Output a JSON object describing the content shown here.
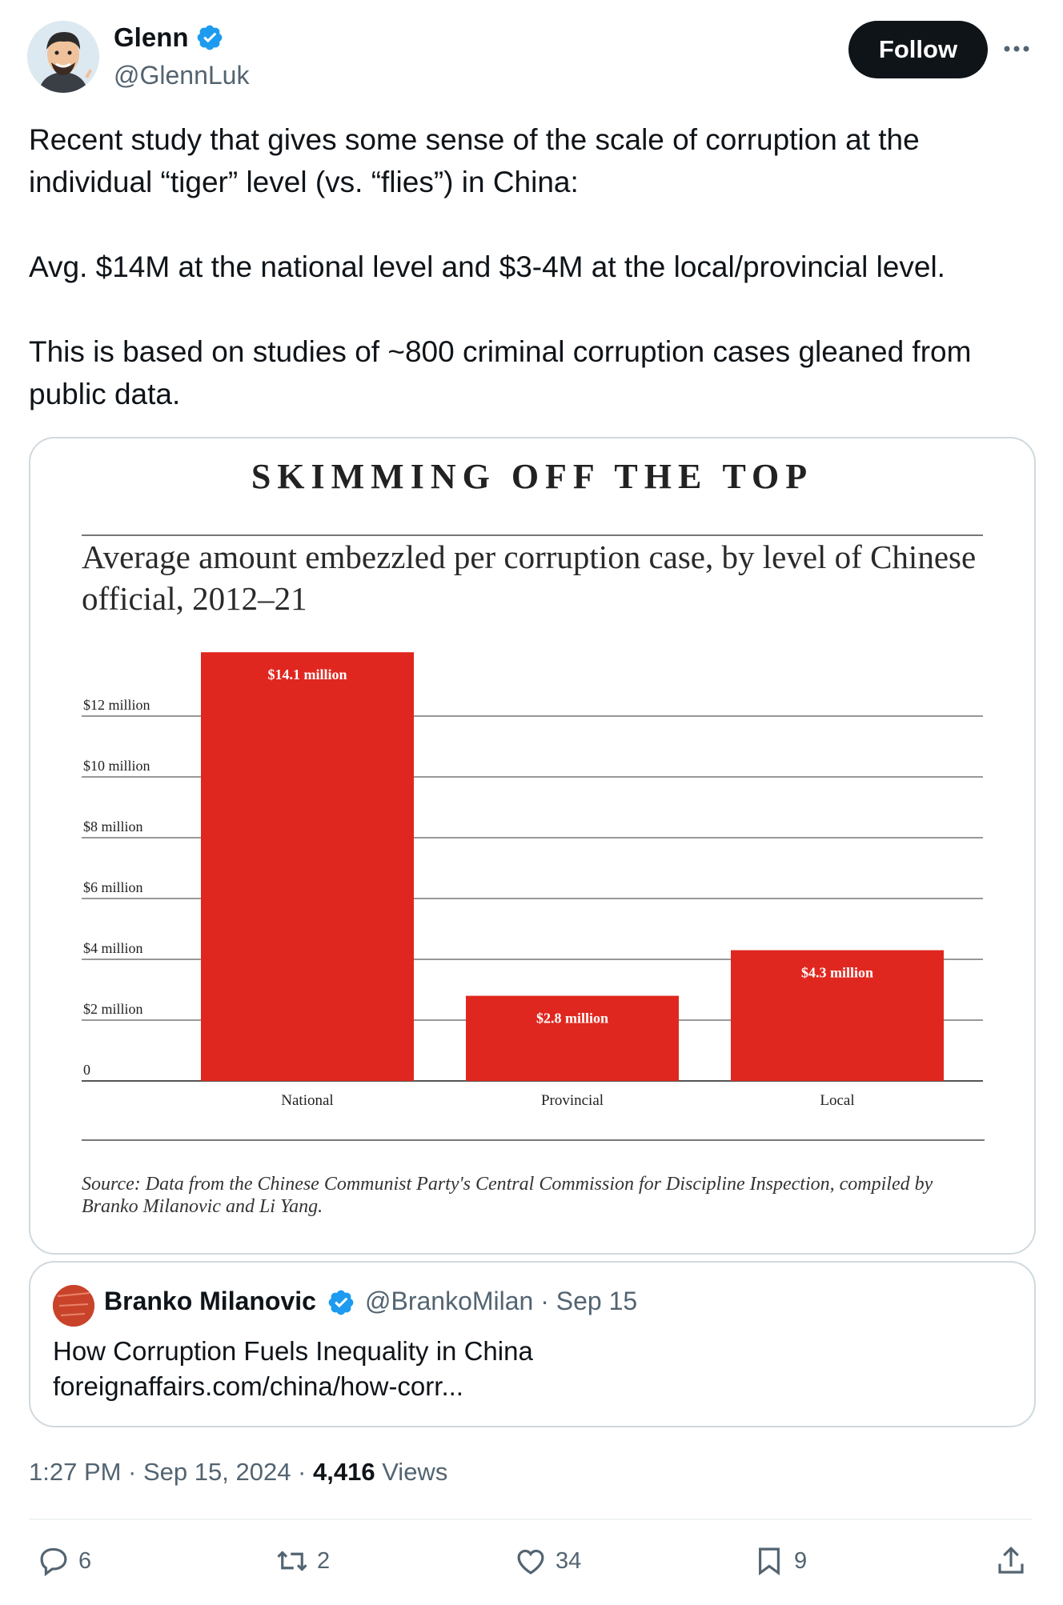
{
  "user": {
    "name": "Glenn",
    "handle": "@GlennLuk",
    "follow_label": "Follow"
  },
  "tweet": {
    "paragraphs": [
      "Recent study that gives some sense of the scale of corruption at the individual “tiger” level (vs. “flies”) in China:",
      "Avg. $14M at the national level and $3-4M at the local/provincial level.",
      "This is based on studies of ~800 criminal corruption cases gleaned from public data."
    ]
  },
  "chart_data": {
    "type": "bar",
    "title": "SKIMMING OFF THE TOP",
    "subtitle": "Average amount embezzled per corruption case, by level of Chinese official, 2012–21",
    "categories": [
      "National",
      "Provincial",
      "Local"
    ],
    "values": [
      14.1,
      2.8,
      4.3
    ],
    "value_labels": [
      "$14.1 million",
      "$2.8 million",
      "$4.3 million"
    ],
    "unit": "million USD",
    "ylim": [
      0,
      14.1
    ],
    "yticks": [
      0,
      2,
      4,
      6,
      8,
      10,
      12
    ],
    "ytick_labels": [
      "0",
      "$2 million",
      "$4 million",
      "$6 million",
      "$8 million",
      "$10 million",
      "$12 million"
    ],
    "grid": true,
    "bar_color": "#e0271f",
    "source": "Source: Data from the Chinese Communist Party's Central Commission for Discipline Inspection, compiled by Branko Milanovic and Li Yang."
  },
  "quote": {
    "name": "Branko Milanovic",
    "handle": "@BrankoMilan · Sep 15",
    "title": "How Corruption Fuels Inequality in China",
    "link": "foreignaffairs.com/china/how-corr..."
  },
  "meta": {
    "time": "1:27 PM · Sep 15, 2024 · ",
    "views_count": "4,416",
    "views_label": " Views"
  },
  "actions": {
    "replies": "6",
    "reposts": "2",
    "likes": "34",
    "bookmarks": "9"
  },
  "colors": {
    "verified": "#1d9bf0",
    "text_secondary": "#536471",
    "bar": "#e0271f"
  },
  "icons": [
    "verified-badge-icon",
    "more-icon",
    "reply-icon",
    "repost-icon",
    "like-icon",
    "bookmark-icon",
    "share-icon"
  ]
}
